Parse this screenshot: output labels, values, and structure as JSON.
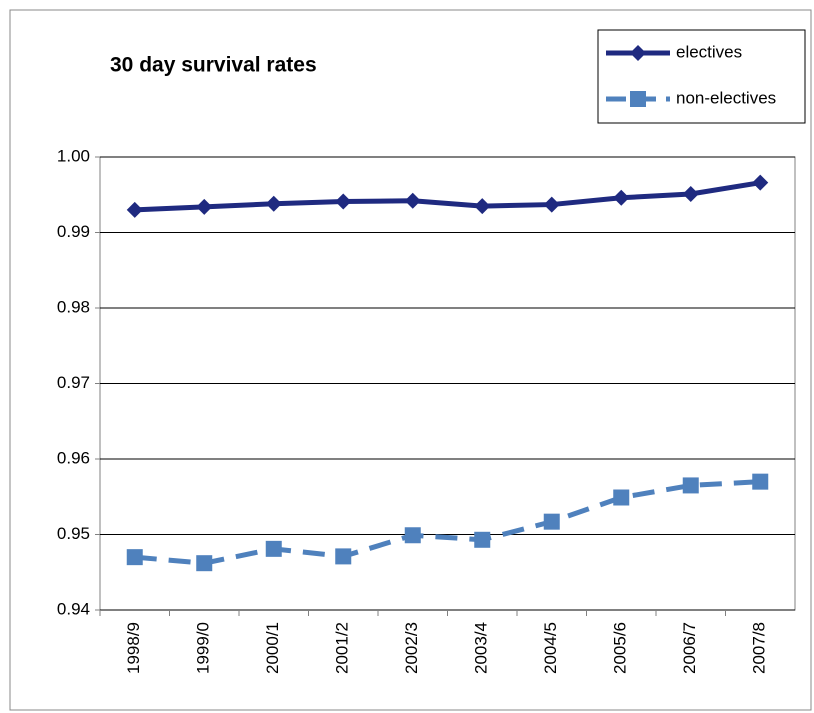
{
  "chart_data": {
    "type": "line",
    "title": "30 day survival rates",
    "categories": [
      "1998/9",
      "1999/0",
      "2000/1",
      "2001/2",
      "2002/3",
      "2003/4",
      "2004/5",
      "2005/6",
      "2006/7",
      "2007/8"
    ],
    "series": [
      {
        "name": "electives",
        "color": "#1f2a80",
        "marker": "diamond",
        "dashed": false,
        "values": [
          0.993,
          0.9934,
          0.9938,
          0.9941,
          0.9942,
          0.9935,
          0.9937,
          0.9946,
          0.9951,
          0.9966
        ]
      },
      {
        "name": "non-electives",
        "color": "#4f81bd",
        "marker": "square",
        "dashed": true,
        "values": [
          0.947,
          0.9462,
          0.9481,
          0.9471,
          0.9499,
          0.9493,
          0.9517,
          0.9549,
          0.9565,
          0.957
        ]
      }
    ],
    "ylim": [
      0.94,
      1.0
    ],
    "yticks": [
      0.94,
      0.95,
      0.96,
      0.97,
      0.98,
      0.99,
      {
        "value": 1.0,
        "label": "1.00"
      }
    ],
    "grid": true,
    "legend": "upper right"
  }
}
